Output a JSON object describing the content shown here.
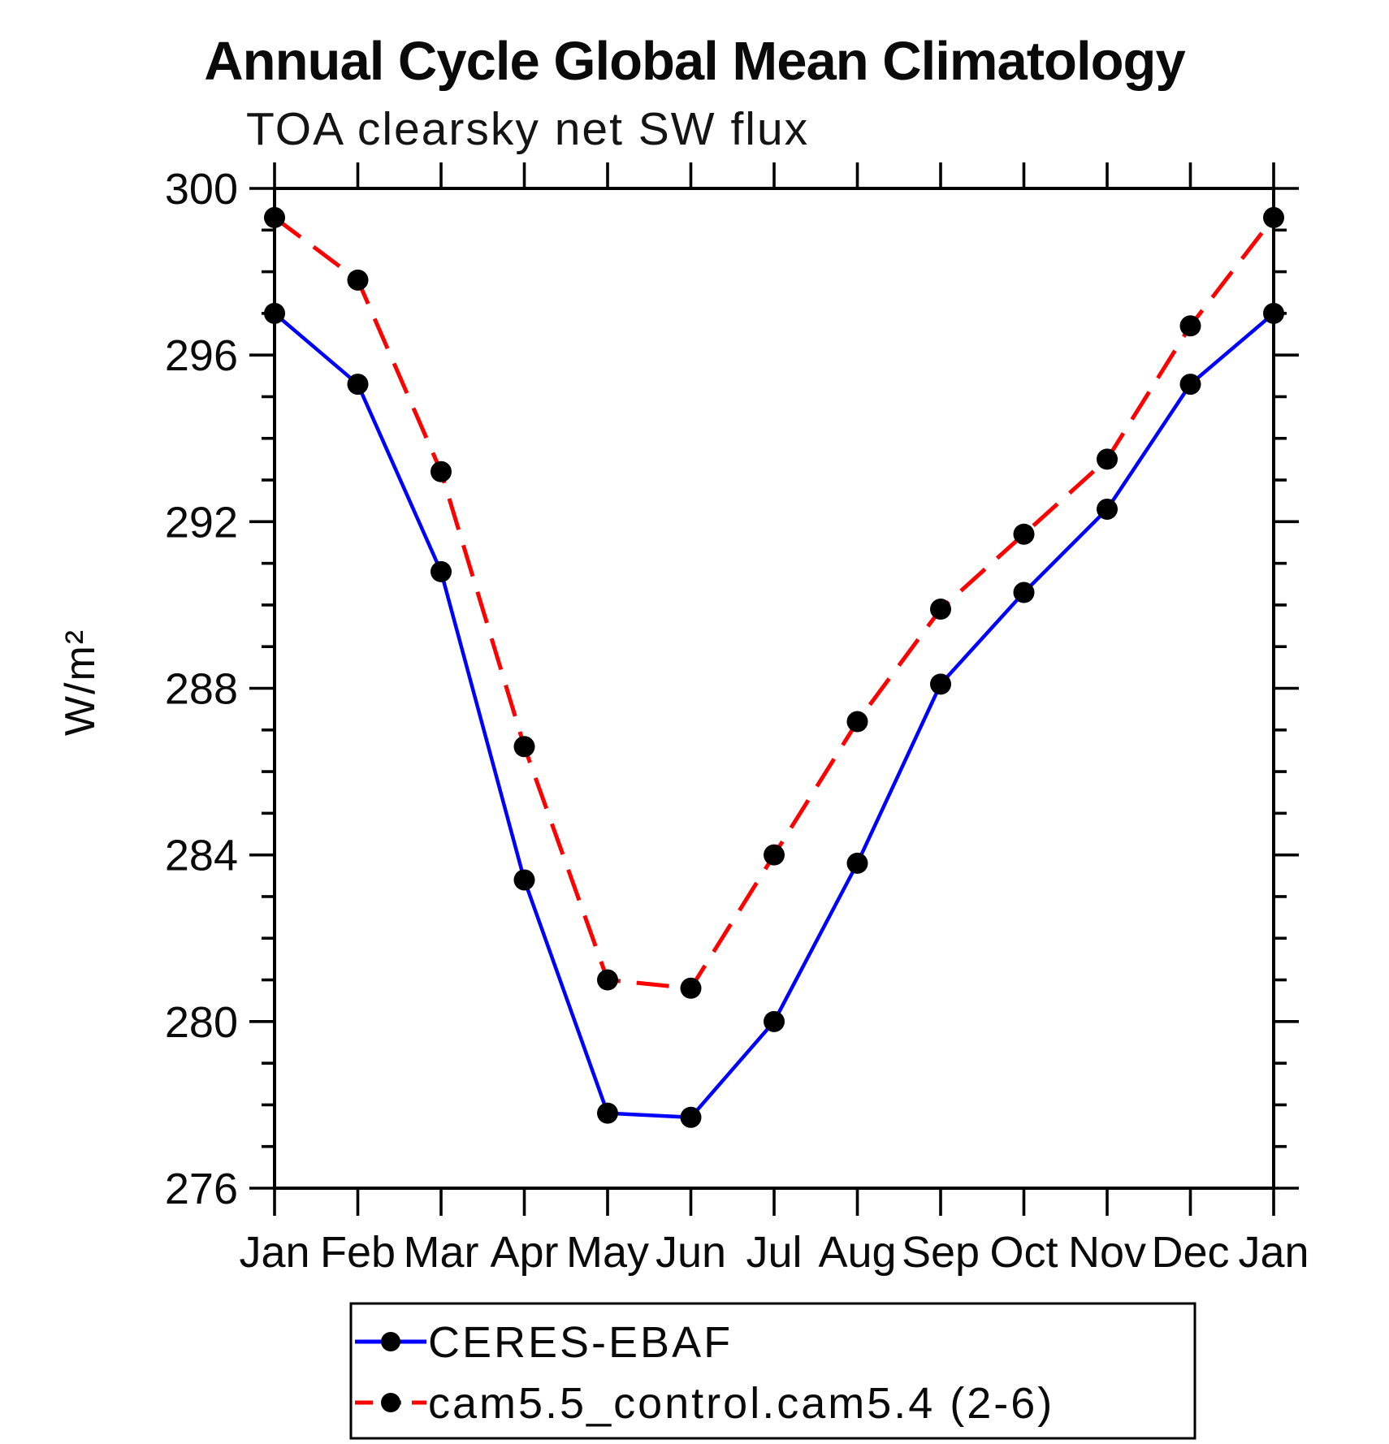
{
  "page": {
    "background": "#ffffff"
  },
  "chart_data": {
    "type": "line",
    "title": "Annual Cycle Global Mean Climatology",
    "subtitle": "TOA clearsky net SW flux",
    "ylabel": "W/m²",
    "xlabel": "",
    "categories": [
      "Jan",
      "Feb",
      "Mar",
      "Apr",
      "May",
      "Jun",
      "Jul",
      "Aug",
      "Sep",
      "Oct",
      "Nov",
      "Dec",
      "Jan"
    ],
    "ylim": [
      276,
      300
    ],
    "ytick_major_step": 4,
    "ytick_minor_step": 1,
    "grid": false,
    "legend_position": "bottom",
    "axis_color": "#000000",
    "marker": {
      "shape": "circle",
      "color": "#000000"
    },
    "series": [
      {
        "name": "CERES-EBAF",
        "color": "#0000ff",
        "line_style": "solid",
        "values": [
          297.0,
          295.3,
          290.8,
          283.4,
          277.8,
          277.7,
          280.0,
          283.8,
          288.1,
          290.3,
          292.3,
          295.3,
          297.0
        ]
      },
      {
        "name": "cam5.5_control.cam5.4 (2-6)",
        "color": "#ff0000",
        "line_style": "dashed",
        "values": [
          299.3,
          297.8,
          293.2,
          286.6,
          281.0,
          280.8,
          284.0,
          287.2,
          289.9,
          291.7,
          293.5,
          296.7,
          299.3
        ]
      }
    ]
  }
}
